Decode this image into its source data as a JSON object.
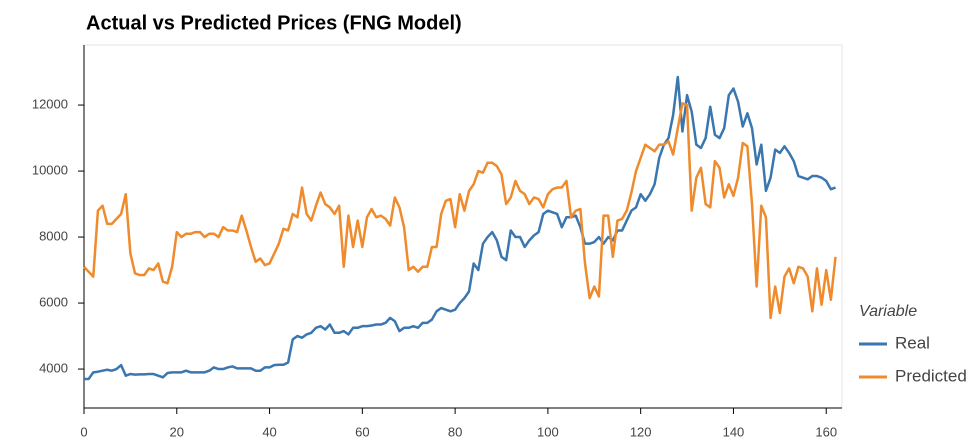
{
  "chart_data": {
    "type": "line",
    "title": "Actual vs Predicted Prices (FNG Model)",
    "legend_title": "Variable",
    "legend_position": "right",
    "xlim": [
      0,
      163.4
    ],
    "xticks": [
      0,
      20,
      40,
      60,
      80,
      100,
      120,
      140,
      160
    ],
    "ylim": [
      2820,
      13820
    ],
    "yticks": [
      4000,
      6000,
      8000,
      10000,
      12000
    ],
    "x": [
      0,
      1,
      2,
      3,
      4,
      5,
      6,
      7,
      8,
      9,
      10,
      11,
      12,
      13,
      14,
      15,
      16,
      17,
      18,
      19,
      20,
      21,
      22,
      23,
      24,
      25,
      26,
      27,
      28,
      29,
      30,
      31,
      32,
      33,
      34,
      35,
      36,
      37,
      38,
      39,
      40,
      41,
      42,
      43,
      44,
      45,
      46,
      47,
      48,
      49,
      50,
      51,
      52,
      53,
      54,
      55,
      56,
      57,
      58,
      59,
      60,
      61,
      62,
      63,
      64,
      65,
      66,
      67,
      68,
      69,
      70,
      71,
      72,
      73,
      74,
      75,
      76,
      77,
      78,
      79,
      80,
      81,
      82,
      83,
      84,
      85,
      86,
      87,
      88,
      89,
      90,
      91,
      92,
      93,
      94,
      95,
      96,
      97,
      98,
      99,
      100,
      101,
      102,
      103,
      104,
      105,
      106,
      107,
      108,
      109,
      110,
      111,
      112,
      113,
      114,
      115,
      116,
      117,
      118,
      119,
      120,
      121,
      122,
      123,
      124,
      125,
      126,
      127,
      128,
      129,
      130,
      131,
      132,
      133,
      134,
      135,
      136,
      137,
      138,
      139,
      140,
      141,
      142,
      143,
      144,
      145,
      146,
      147,
      148,
      149,
      150,
      151,
      152,
      153,
      154,
      155,
      156,
      157,
      158,
      159,
      160,
      161,
      162
    ],
    "series": [
      {
        "name": "Real",
        "color": "#3a76af",
        "values": [
          3700,
          3700,
          3900,
          3920,
          3950,
          3980,
          3950,
          4000,
          4120,
          3800,
          3850,
          3830,
          3840,
          3840,
          3850,
          3850,
          3800,
          3750,
          3880,
          3900,
          3900,
          3900,
          3950,
          3900,
          3900,
          3900,
          3900,
          3950,
          4050,
          4000,
          4000,
          4050,
          4080,
          4020,
          4020,
          4020,
          4020,
          3950,
          3950,
          4050,
          4050,
          4120,
          4130,
          4130,
          4200,
          4900,
          5000,
          4950,
          5050,
          5100,
          5250,
          5300,
          5200,
          5350,
          5100,
          5100,
          5150,
          5050,
          5250,
          5250,
          5300,
          5300,
          5320,
          5350,
          5350,
          5400,
          5550,
          5450,
          5150,
          5250,
          5250,
          5300,
          5250,
          5400,
          5400,
          5500,
          5750,
          5850,
          5800,
          5750,
          5800,
          6000,
          6150,
          6350,
          7200,
          7000,
          7800,
          8000,
          8150,
          7900,
          7400,
          7300,
          8200,
          8000,
          8000,
          7700,
          7900,
          8050,
          8150,
          8700,
          8800,
          8750,
          8700,
          8300,
          8600,
          8600,
          8650,
          8300,
          7800,
          7800,
          7850,
          8000,
          7800,
          8000,
          7900,
          8200,
          8200,
          8500,
          8800,
          8900,
          9300,
          9100,
          9300,
          9600,
          10400,
          10800,
          11000,
          11700,
          12850,
          11200,
          12300,
          11800,
          10800,
          10700,
          11000,
          11950,
          11100,
          11000,
          11300,
          12300,
          12500,
          12100,
          11350,
          11750,
          11300,
          10200,
          10800,
          9400,
          9800,
          10650,
          10550,
          10750,
          10550,
          10300,
          9850,
          9800,
          9750,
          9850,
          9850,
          9800,
          9700,
          9450,
          9500
        ]
      },
      {
        "name": "Predicted",
        "color": "#ef8b2c",
        "values": [
          7100,
          6950,
          6800,
          8800,
          8950,
          8400,
          8400,
          8550,
          8700,
          9300,
          7500,
          6900,
          6850,
          6850,
          7050,
          7000,
          7200,
          6650,
          6600,
          7100,
          8150,
          8000,
          8100,
          8100,
          8150,
          8150,
          8000,
          8100,
          8100,
          8000,
          8300,
          8200,
          8200,
          8150,
          8650,
          8200,
          7700,
          7250,
          7350,
          7150,
          7200,
          7500,
          7800,
          8250,
          8200,
          8700,
          8600,
          9500,
          8700,
          8500,
          8950,
          9350,
          9000,
          8900,
          8700,
          8950,
          7100,
          8650,
          7700,
          8500,
          7700,
          8600,
          8850,
          8600,
          8650,
          8550,
          8350,
          9200,
          8900,
          8300,
          7000,
          7100,
          6950,
          7100,
          7100,
          7700,
          7700,
          8700,
          9100,
          9150,
          8300,
          9300,
          8800,
          9400,
          9600,
          10000,
          9950,
          10250,
          10250,
          10150,
          9900,
          9000,
          9200,
          9700,
          9400,
          9300,
          9000,
          9200,
          9150,
          8900,
          9300,
          9450,
          9500,
          9500,
          9700,
          8600,
          8800,
          8850,
          7200,
          6150,
          6500,
          6200,
          8650,
          8650,
          7400,
          8500,
          8550,
          8800,
          9350,
          10000,
          10400,
          10800,
          10700,
          10600,
          10800,
          10800,
          10900,
          10500,
          11300,
          12050,
          12000,
          8800,
          9800,
          10100,
          9000,
          8900,
          10300,
          10100,
          9200,
          9600,
          9250,
          9800,
          10850,
          10750,
          9000,
          6500,
          8950,
          8600,
          5550,
          6500,
          5700,
          6800,
          7050,
          6600,
          7100,
          7050,
          6800,
          5750,
          7050,
          5950,
          7000,
          6100,
          7400
        ]
      }
    ]
  }
}
